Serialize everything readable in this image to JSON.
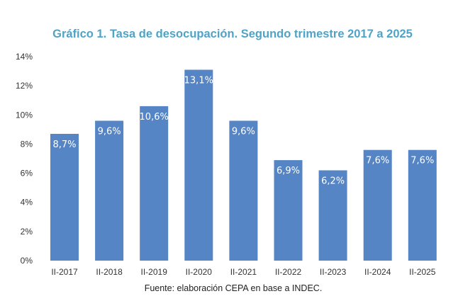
{
  "chart_data": {
    "type": "bar",
    "title": "Gráfico 1. Tasa de desocupación. Segundo trimestre 2017 a 2025",
    "xlabel": "",
    "ylabel": "",
    "categories": [
      "II-2017",
      "II-2018",
      "II-2019",
      "II-2020",
      "II-2021",
      "II-2022",
      "II-2023",
      "II-2024",
      "II-2025"
    ],
    "values": [
      8.7,
      9.6,
      10.6,
      13.1,
      9.6,
      6.9,
      6.2,
      7.6,
      7.6
    ],
    "data_labels": [
      "8,7%",
      "9,6%",
      "10,6%",
      "13,1%",
      "9,6%",
      "6,9%",
      "6,2%",
      "7,6%",
      "7,6%"
    ],
    "ylim": [
      0,
      14
    ],
    "yticks": [
      0,
      2,
      4,
      6,
      8,
      10,
      12,
      14
    ],
    "ytick_labels": [
      "0%",
      "2%",
      "4%",
      "6%",
      "8%",
      "10%",
      "12%",
      "14%"
    ],
    "grid": false,
    "legend": "none",
    "bar_color": "#5585c5",
    "title_color": "#4fa3c7",
    "source": "Fuente: elaboración CEPA en base a INDEC."
  }
}
